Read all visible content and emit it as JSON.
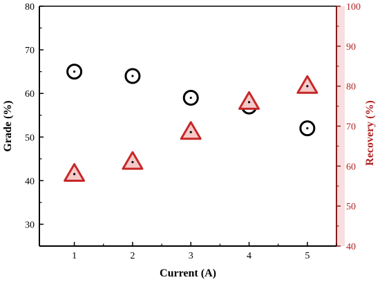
{
  "chart_data": {
    "type": "scatter",
    "x": [
      1,
      2,
      3,
      4,
      5
    ],
    "xlabel": "Current (A)",
    "xticks": [
      "1",
      "2",
      "3",
      "4",
      "5"
    ],
    "xlim": [
      0.4,
      5.5
    ],
    "y_left": {
      "label": "Grade (%)",
      "lim": [
        25,
        80
      ],
      "ticks": [
        "30",
        "40",
        "50",
        "60",
        "70",
        "80"
      ],
      "color": "#000000"
    },
    "y_right": {
      "label": "Recovery (%)",
      "lim": [
        40,
        100
      ],
      "ticks": [
        "40",
        "50",
        "60",
        "70",
        "80",
        "90",
        "100"
      ],
      "color": "#b22222",
      "band_color": "#f8dede"
    },
    "series": [
      {
        "axis": "left",
        "marker": "circle",
        "color": "#000000",
        "values": [
          65,
          64,
          59,
          57,
          52
        ]
      },
      {
        "axis": "right",
        "marker": "triangle",
        "color": "#c62828",
        "fill": "#f6c9c9",
        "values": [
          58,
          61,
          68.5,
          76,
          80
        ]
      }
    ],
    "grid": false
  }
}
